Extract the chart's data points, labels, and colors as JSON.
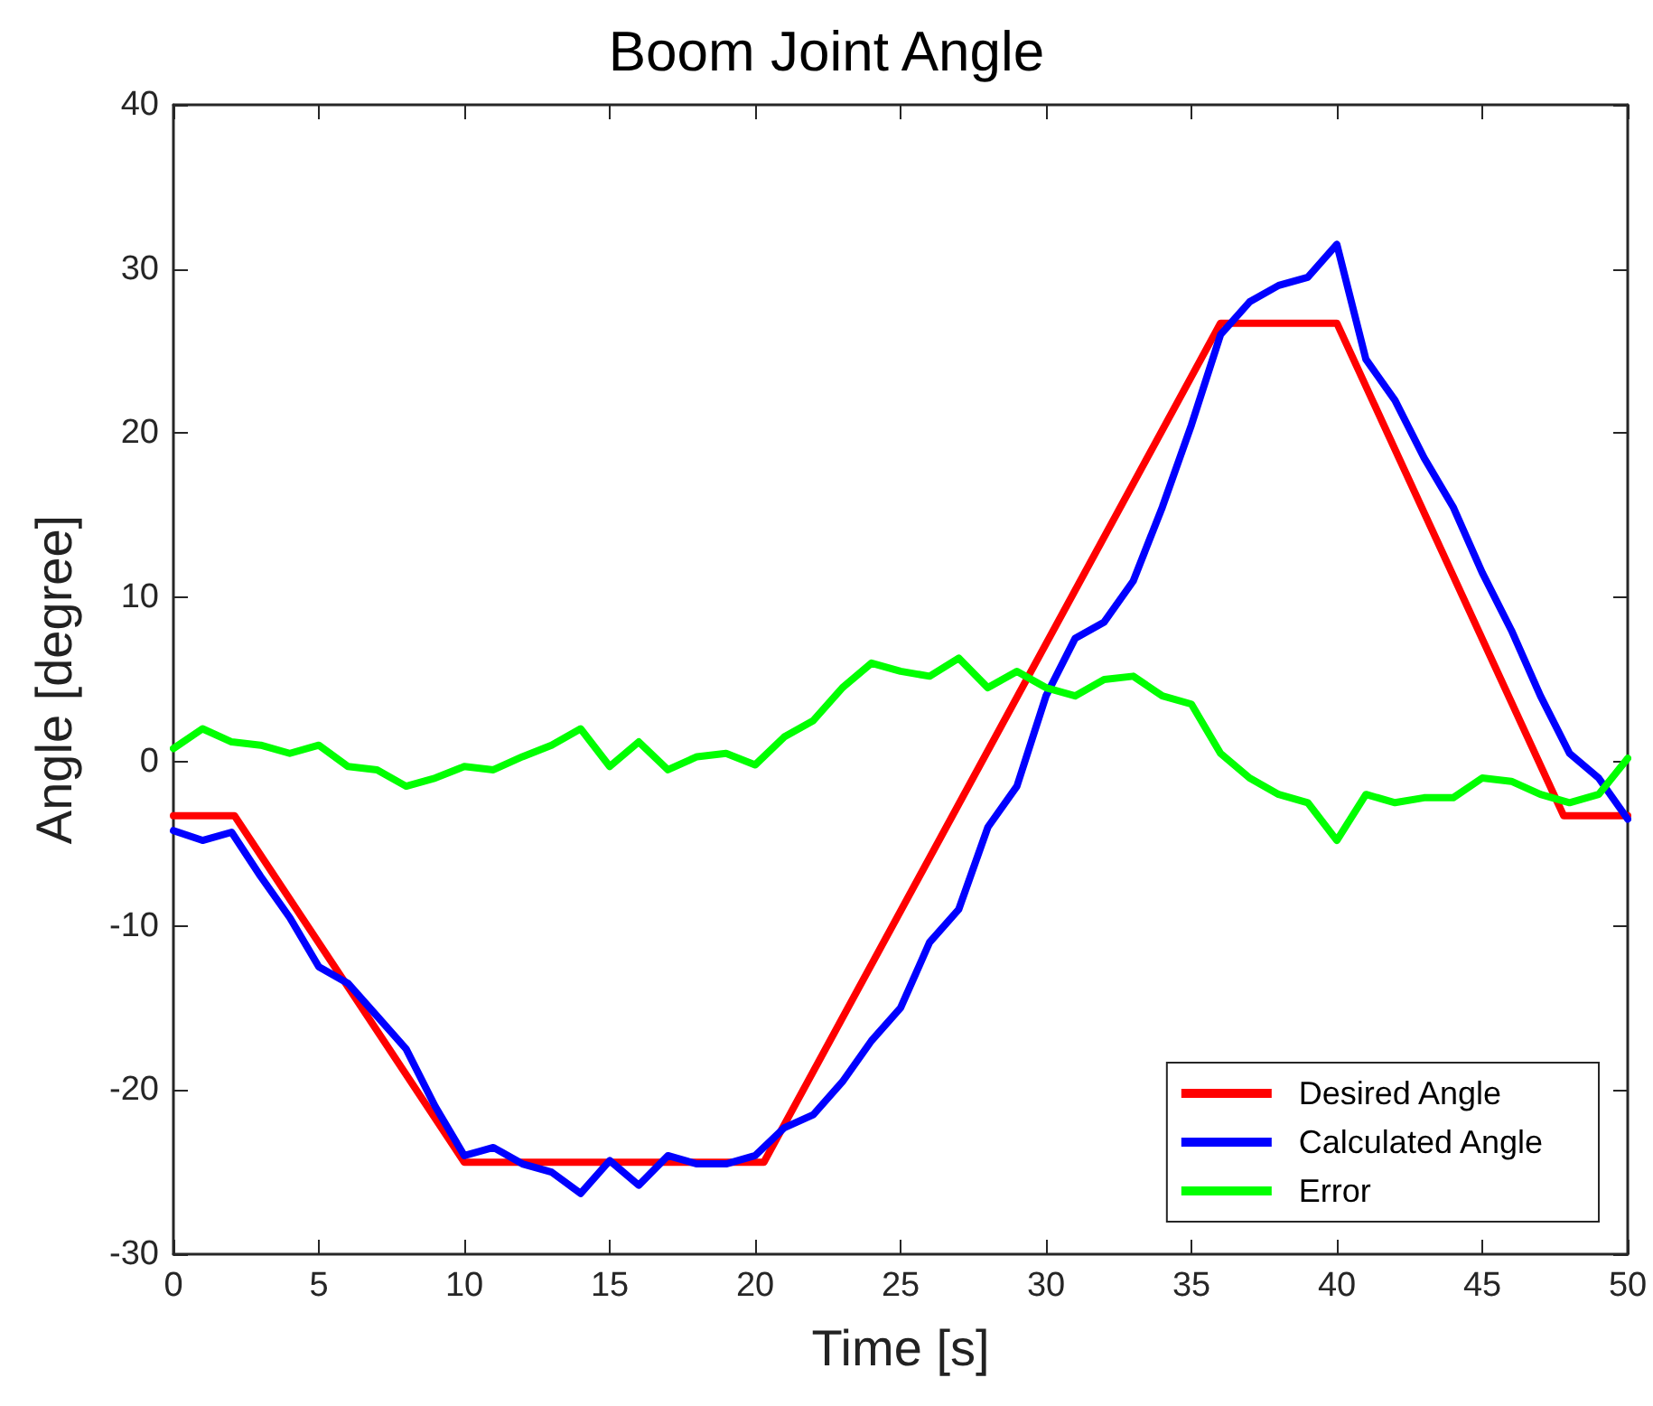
{
  "chart_data": {
    "type": "line",
    "title": "Boom Joint Angle",
    "xlabel": "Time [s]",
    "ylabel": "Angle [degree]",
    "xlim": [
      0,
      50
    ],
    "xticks": [
      0,
      5,
      10,
      15,
      20,
      25,
      30,
      35,
      40,
      45,
      50
    ],
    "ylim": [
      -30,
      40
    ],
    "yticks": [
      -30,
      -20,
      -10,
      0,
      10,
      20,
      30,
      40
    ],
    "grid": false,
    "legend": "bottom right",
    "marker": "none",
    "line_style": "solid",
    "series": [
      {
        "name": "Desired Angle",
        "color": "#ff0000",
        "x": [
          0,
          2.1,
          10,
          20.3,
          36,
          40,
          47.8,
          50
        ],
        "values": [
          -3.3,
          -3.3,
          -24.4,
          -24.4,
          26.7,
          26.7,
          -3.3,
          -3.3
        ]
      },
      {
        "name": "Calculated Angle",
        "color": "#0000ff",
        "x": [
          0,
          1,
          2,
          3,
          4,
          5,
          6,
          7,
          8,
          9,
          10,
          11,
          12,
          13,
          14,
          15,
          16,
          17,
          18,
          19,
          20,
          21,
          22,
          23,
          24,
          25,
          26,
          27,
          28,
          29,
          30,
          31,
          32,
          33,
          34,
          35,
          36,
          37,
          38,
          39,
          40,
          41,
          42,
          43,
          44,
          45,
          46,
          47,
          48,
          49,
          50
        ],
        "values": [
          -4.2,
          -4.8,
          -4.3,
          -7,
          -9.5,
          -12.5,
          -13.5,
          -15.5,
          -17.5,
          -21,
          -24,
          -23.5,
          -24.5,
          -25,
          -26.3,
          -24.3,
          -25.8,
          -24,
          -24.5,
          -24.5,
          -24,
          -22.3,
          -21.5,
          -19.5,
          -17,
          -15,
          -11,
          -9,
          -4,
          -1.5,
          4,
          7.5,
          8.5,
          11,
          15.5,
          20.5,
          26,
          28,
          29,
          29.5,
          31.5,
          24.5,
          22,
          18.5,
          15.5,
          11.5,
          8,
          4,
          0.5,
          -1,
          -3.5
        ]
      },
      {
        "name": "Error",
        "color": "#00ff00",
        "x": [
          0,
          1,
          2,
          3,
          4,
          5,
          6,
          7,
          8,
          9,
          10,
          11,
          12,
          13,
          14,
          15,
          16,
          17,
          18,
          19,
          20,
          21,
          22,
          23,
          24,
          25,
          26,
          27,
          28,
          29,
          30,
          31,
          32,
          33,
          34,
          35,
          36,
          37,
          38,
          39,
          40,
          41,
          42,
          43,
          44,
          45,
          46,
          47,
          48,
          49,
          50
        ],
        "values": [
          0.8,
          2,
          1.2,
          1,
          0.5,
          1,
          -0.3,
          -0.5,
          -1.5,
          -1,
          -0.3,
          -0.5,
          0.3,
          1,
          2,
          -0.3,
          1.2,
          -0.5,
          0.3,
          0.5,
          -0.2,
          1.5,
          2.5,
          4.5,
          6,
          5.5,
          5.2,
          6.3,
          4.5,
          5.5,
          4.5,
          4,
          5,
          5.2,
          4,
          3.5,
          0.5,
          -1,
          -2,
          -2.5,
          -4.8,
          -2,
          -2.5,
          -2.2,
          -2.2,
          -1,
          -1.2,
          -2,
          -2.5,
          -2,
          0.2
        ]
      }
    ]
  }
}
